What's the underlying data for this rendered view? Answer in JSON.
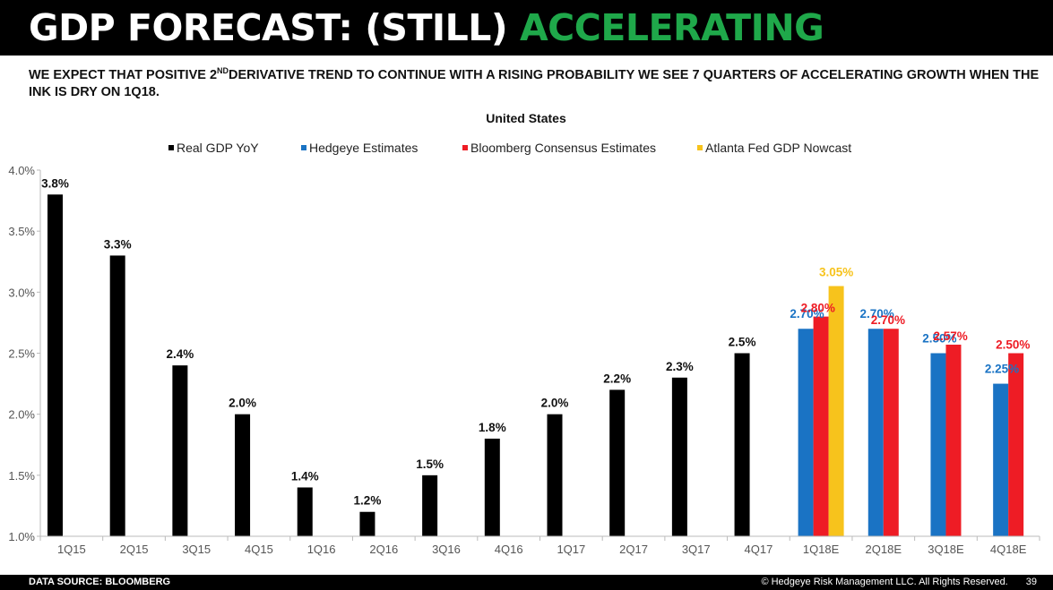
{
  "header": {
    "title_part1": "GDP FORECAST: (STILL)",
    "title_part2": "ACCELERATING",
    "subtitle_a": "WE EXPECT THAT POSITIVE 2",
    "subtitle_sup": "ND",
    "subtitle_b": "DERIVATIVE  TREND TO CONTINUE WITH A RISING PROBABILITY  WE SEE 7 QUARTERS OF ACCELERATING  GROWTH WHEN THE INK IS DRY ON 1Q18."
  },
  "footer": {
    "source": "DATA SOURCE: BLOOMBERG",
    "copyright": "© Hedgeye Risk Management LLC. All Rights Reserved.",
    "page_number": "39"
  },
  "chart_data": {
    "type": "bar",
    "title": "United States",
    "categories": [
      "1Q15",
      "2Q15",
      "3Q15",
      "4Q15",
      "1Q16",
      "2Q16",
      "3Q16",
      "4Q16",
      "1Q17",
      "2Q17",
      "3Q17",
      "4Q17",
      "1Q18E",
      "2Q18E",
      "3Q18E",
      "4Q18E"
    ],
    "ylim": [
      1.0,
      4.0
    ],
    "yticks": [
      "1.0%",
      "1.5%",
      "2.0%",
      "2.5%",
      "3.0%",
      "3.5%",
      "4.0%"
    ],
    "ytick_values": [
      1.0,
      1.5,
      2.0,
      2.5,
      3.0,
      3.5,
      4.0
    ],
    "series": [
      {
        "name": "Real GDP YoY",
        "color": "#000000",
        "values": [
          3.8,
          3.3,
          2.4,
          2.0,
          1.4,
          1.2,
          1.5,
          1.8,
          2.0,
          2.2,
          2.3,
          2.5,
          null,
          null,
          null,
          null
        ],
        "labels": [
          "3.8%",
          "3.3%",
          "2.4%",
          "2.0%",
          "1.4%",
          "1.2%",
          "1.5%",
          "1.8%",
          "2.0%",
          "2.2%",
          "2.3%",
          "2.5%",
          null,
          null,
          null,
          null
        ]
      },
      {
        "name": "Hedgeye Estimates",
        "color": "#1a73c4",
        "values": [
          null,
          null,
          null,
          null,
          null,
          null,
          null,
          null,
          null,
          null,
          null,
          null,
          2.7,
          2.7,
          2.5,
          2.25
        ],
        "labels": [
          null,
          null,
          null,
          null,
          null,
          null,
          null,
          null,
          null,
          null,
          null,
          null,
          "2.70%",
          "2.70%",
          "2.50%",
          "2.25%"
        ]
      },
      {
        "name": "Bloomberg Consensus Estimates",
        "color": "#ee1c25",
        "values": [
          null,
          null,
          null,
          null,
          null,
          null,
          null,
          null,
          null,
          null,
          null,
          null,
          2.8,
          2.7,
          2.57,
          2.5
        ],
        "labels": [
          null,
          null,
          null,
          null,
          null,
          null,
          null,
          null,
          null,
          null,
          null,
          null,
          "2.80%",
          "2.70%",
          "2.57%",
          "2.50%"
        ]
      },
      {
        "name": "Atlanta Fed GDP Nowcast",
        "color": "#f7c31c",
        "values": [
          null,
          null,
          null,
          null,
          null,
          null,
          null,
          null,
          null,
          null,
          null,
          null,
          3.05,
          null,
          null,
          null
        ],
        "labels": [
          null,
          null,
          null,
          null,
          null,
          null,
          null,
          null,
          null,
          null,
          null,
          null,
          "3.05%",
          null,
          null,
          null
        ]
      }
    ],
    "legend_position": "top"
  }
}
